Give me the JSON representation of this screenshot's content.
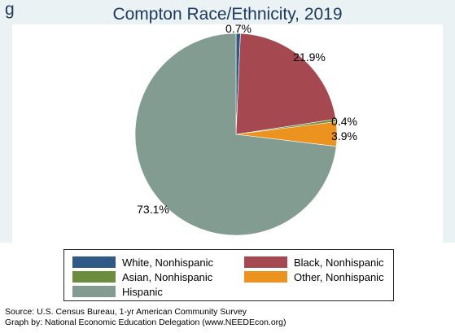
{
  "chart_data": {
    "type": "pie",
    "title": "Compton Race/Ethnicity, 2019",
    "categories": [
      "White, Nonhispanic",
      "Black, Nonhispanic",
      "Asian, Nonhispanic",
      "Other, Nonhispanic",
      "Hispanic"
    ],
    "values": [
      0.7,
      21.9,
      0.4,
      3.9,
      73.1
    ],
    "labels": [
      "0.7%",
      "21.9%",
      "0.4%",
      "3.9%",
      "73.1%"
    ],
    "colors": [
      "#2e5a85",
      "#a6484f",
      "#6b8e3e",
      "#eb921f",
      "#839c92"
    ],
    "legend_position": "bottom"
  },
  "header": {
    "cut_prefix": "g"
  },
  "footer": {
    "source": "Source: U.S. Census Bureau, 1-yr American Community Survey",
    "credit": "Graph by: National Economic Education Delegation (www.NEEDEcon.org)"
  }
}
